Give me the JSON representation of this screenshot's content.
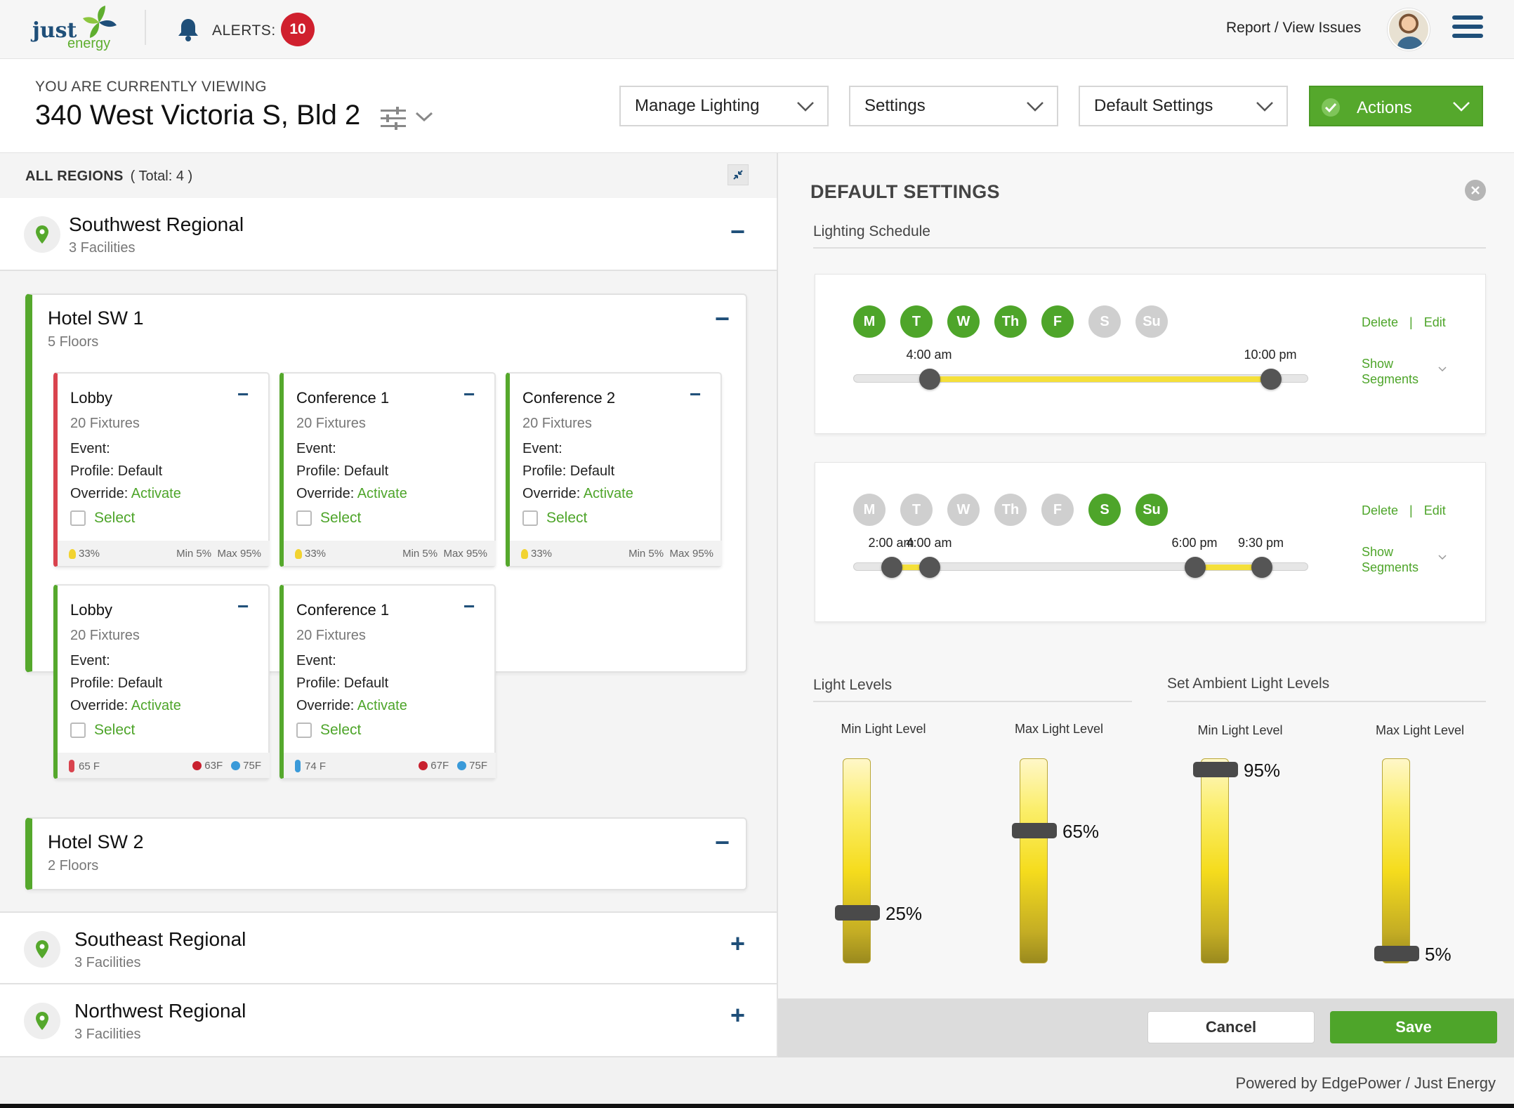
{
  "header": {
    "logo_just": "just",
    "logo_energy": "energy",
    "alerts_label": "ALERTS:",
    "alerts_count": "10",
    "report_link": "Report / View Issues"
  },
  "subheader": {
    "viewing_label": "YOU ARE CURRENTLY VIEWING",
    "building": "340 West Victoria S, Bld 2",
    "dropdowns": {
      "manage": "Manage Lighting",
      "settings": "Settings",
      "default": "Default Settings",
      "actions": "Actions"
    }
  },
  "regions": {
    "heading": "ALL REGIONS",
    "total": "( Total: 4 )",
    "southwest": {
      "name": "Southwest Regional",
      "sub": "3 Facilities",
      "toggle": "−"
    },
    "southeast": {
      "name": "Southeast Regional",
      "sub": "3 Facilities",
      "toggle": "+"
    },
    "northwest": {
      "name": "Northwest Regional",
      "sub": "3 Facilities",
      "toggle": "+"
    }
  },
  "facilities": {
    "sw1": {
      "name": "Hotel SW 1",
      "sub": "5 Floors",
      "toggle": "−"
    },
    "sw2": {
      "name": "Hotel SW 2",
      "sub": "2 Floors",
      "toggle": "−"
    }
  },
  "room_labels": {
    "event": "Event:",
    "profile": "Profile: Default",
    "override": "Override:",
    "activate": "Activate",
    "select": "Select",
    "toggle": "−"
  },
  "rooms": [
    {
      "name": "Lobby",
      "fixtures": "20 Fixtures",
      "foot_left": "33%",
      "foot_min": "Min 5%",
      "foot_max": "Max 95%"
    },
    {
      "name": "Conference 1",
      "fixtures": "20 Fixtures",
      "foot_left": "33%",
      "foot_min": "Min 5%",
      "foot_max": "Max 95%"
    },
    {
      "name": "Conference 2",
      "fixtures": "20 Fixtures",
      "foot_left": "33%",
      "foot_min": "Min 5%",
      "foot_max": "Max 95%"
    },
    {
      "name": "Lobby",
      "fixtures": "20 Fixtures",
      "foot_left": "65 F",
      "foot_t1": "63F",
      "foot_t2": "75F"
    },
    {
      "name": "Conference 1",
      "fixtures": "20 Fixtures",
      "foot_left": "74 F",
      "foot_t1": "67F",
      "foot_t2": "75F"
    }
  ],
  "default_settings": {
    "title": "DEFAULT SETTINGS",
    "lighting_schedule": "Lighting Schedule",
    "delete": "Delete",
    "pipe": "|",
    "edit": "Edit",
    "show_segments_1": "Show",
    "show_segments_2": "Segments",
    "schedules": [
      {
        "days": [
          {
            "label": "M",
            "on": true
          },
          {
            "label": "T",
            "on": true
          },
          {
            "label": "W",
            "on": true
          },
          {
            "label": "Th",
            "on": true
          },
          {
            "label": "F",
            "on": true
          },
          {
            "label": "S",
            "on": false
          },
          {
            "label": "Su",
            "on": false
          }
        ],
        "times": [
          "4:00 am",
          "10:00 pm"
        ],
        "hours": [
          4,
          22
        ]
      },
      {
        "days": [
          {
            "label": "M",
            "on": false
          },
          {
            "label": "T",
            "on": false
          },
          {
            "label": "W",
            "on": false
          },
          {
            "label": "Th",
            "on": false
          },
          {
            "label": "F",
            "on": false
          },
          {
            "label": "S",
            "on": true
          },
          {
            "label": "Su",
            "on": true
          }
        ],
        "times": [
          "2:00 am",
          "4:00 am",
          "6:00 pm",
          "9:30 pm"
        ],
        "hours": [
          2,
          4,
          18,
          21.5
        ]
      }
    ],
    "light_levels": "Light Levels",
    "ambient_levels": "Set Ambient Light Levels",
    "sliders": [
      {
        "label": "Min Light Level",
        "value": 25,
        "display": "25%"
      },
      {
        "label": "Max Light Level",
        "value": 65,
        "display": "65%"
      },
      {
        "label": "Min Light Level",
        "value": 95,
        "display": "95%"
      },
      {
        "label": "Max Light Level",
        "value": 5,
        "display": "5%"
      }
    ],
    "cancel": "Cancel",
    "save": "Save"
  },
  "colors": {
    "accent": "#55a82c",
    "brand_blue": "#1f4f79",
    "alert_red": "#d0202e",
    "track_yellow": "#f5e03a"
  },
  "footer": {
    "powered": "Powered by EdgePower / Just Energy"
  }
}
